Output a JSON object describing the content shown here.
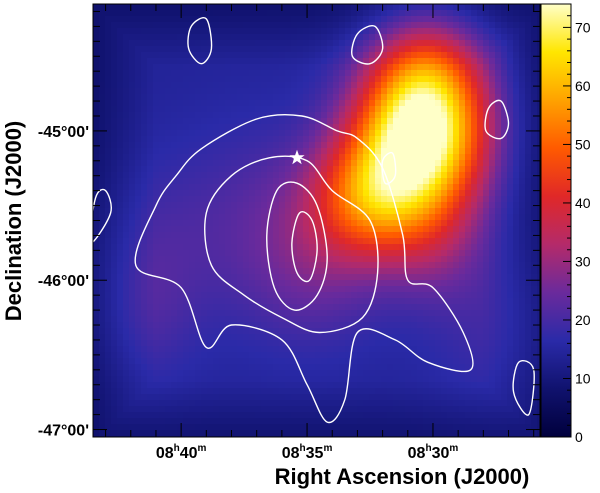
{
  "chart_data": {
    "type": "heatmap",
    "title": "",
    "xlabel": "Right Ascension (J2000)",
    "ylabel": "Declination (J2000)",
    "x_axis": {
      "direction": "decreasing-right",
      "range_min": [
        8,
        43,
        30
      ],
      "range_max": [
        8,
        25,
        45
      ],
      "ticks": [
        {
          "label_h": "08",
          "label_m": "40",
          "ra_min": 520.0
        },
        {
          "label_h": "08",
          "label_m": "35",
          "ra_min": 515.0
        },
        {
          "label_h": "08",
          "label_m": "30",
          "ra_min": 510.0
        }
      ]
    },
    "y_axis": {
      "range": [
        -47.05,
        -44.15
      ],
      "ticks": [
        {
          "label": "-45°00'",
          "dec": -45.0
        },
        {
          "label": "-46°00'",
          "dec": -46.0
        },
        {
          "label": "-47°00'",
          "dec": -47.0
        }
      ]
    },
    "colorbar": {
      "range": [
        0,
        74
      ],
      "ticks": [
        "0",
        "10",
        "20",
        "30",
        "40",
        "50",
        "60",
        "70"
      ],
      "palette": [
        "#00003c",
        "#10126e",
        "#2a2aa8",
        "#6a2a9c",
        "#b42a6a",
        "#e02828",
        "#ff5a00",
        "#ffa200",
        "#ffe600",
        "#ffffc8"
      ]
    },
    "hotspots": [
      {
        "ra_min": 510.5,
        "dec": -45.05,
        "amp": 58,
        "sig_ra": 1.8,
        "sig_dec": 0.34
      },
      {
        "ra_min": 512.5,
        "dec": -45.45,
        "amp": 30,
        "sig_ra": 1.6,
        "sig_dec": 0.28
      },
      {
        "ra_min": 510.2,
        "dec": -44.6,
        "amp": 22,
        "sig_ra": 1.6,
        "sig_dec": 0.3
      },
      {
        "ra_min": 510.0,
        "dec": -45.7,
        "amp": 12,
        "sig_ra": 1.5,
        "sig_dec": 0.3
      },
      {
        "ra_min": 514.5,
        "dec": -45.85,
        "amp": 9,
        "sig_ra": 2.0,
        "sig_dec": 0.4
      },
      {
        "ra_min": 517.0,
        "dec": -45.6,
        "amp": 6,
        "sig_ra": 2.4,
        "sig_dec": 0.5
      },
      {
        "ra_min": 521.5,
        "dec": -46.25,
        "amp": 5,
        "sig_ra": 1.5,
        "sig_dec": 0.35
      },
      {
        "ra_min": 521.0,
        "dec": -45.75,
        "amp": 4,
        "sig_ra": 1.8,
        "sig_dec": 0.4
      },
      {
        "ra_min": 507.5,
        "dec": -46.3,
        "amp": 5,
        "sig_ra": 2.0,
        "sig_dec": 0.4
      }
    ],
    "background_level": 14,
    "source_marker": {
      "symbol": "star",
      "ra_min": 515.4,
      "dec": -45.18
    },
    "contours": [
      {
        "name": "contour-outer",
        "points": [
          [
            519.2,
            -45.12
          ],
          [
            517.0,
            -44.92
          ],
          [
            515.2,
            -44.9
          ],
          [
            513.8,
            -45.0
          ],
          [
            513.0,
            -45.05
          ],
          [
            512.0,
            -45.25
          ],
          [
            511.2,
            -45.7
          ],
          [
            511.0,
            -46.0
          ],
          [
            510.0,
            -46.05
          ],
          [
            508.8,
            -46.35
          ],
          [
            508.5,
            -46.6
          ],
          [
            510.2,
            -46.55
          ],
          [
            511.5,
            -46.4
          ],
          [
            513.0,
            -46.35
          ],
          [
            513.5,
            -46.8
          ],
          [
            514.2,
            -46.95
          ],
          [
            515.0,
            -46.7
          ],
          [
            516.0,
            -46.4
          ],
          [
            518.0,
            -46.3
          ],
          [
            519.0,
            -46.45
          ],
          [
            520.0,
            -46.05
          ],
          [
            521.8,
            -45.9
          ],
          [
            521.0,
            -45.5
          ],
          [
            520.2,
            -45.3
          ],
          [
            519.2,
            -45.12
          ]
        ]
      },
      {
        "name": "contour-middle",
        "points": [
          [
            518.0,
            -45.3
          ],
          [
            516.5,
            -45.18
          ],
          [
            515.0,
            -45.2
          ],
          [
            514.0,
            -45.4
          ],
          [
            512.5,
            -45.6
          ],
          [
            512.2,
            -45.95
          ],
          [
            512.8,
            -46.25
          ],
          [
            514.5,
            -46.35
          ],
          [
            516.0,
            -46.25
          ],
          [
            517.5,
            -46.1
          ],
          [
            518.8,
            -45.9
          ],
          [
            519.0,
            -45.55
          ],
          [
            518.0,
            -45.3
          ]
        ]
      },
      {
        "name": "contour-inner",
        "points": [
          [
            516.2,
            -45.4
          ],
          [
            515.4,
            -45.35
          ],
          [
            514.6,
            -45.5
          ],
          [
            514.2,
            -45.85
          ],
          [
            514.6,
            -46.1
          ],
          [
            515.5,
            -46.2
          ],
          [
            516.3,
            -46.05
          ],
          [
            516.6,
            -45.7
          ],
          [
            516.2,
            -45.4
          ]
        ]
      },
      {
        "name": "contour-core",
        "points": [
          [
            515.3,
            -45.55
          ],
          [
            514.8,
            -45.6
          ],
          [
            514.6,
            -45.8
          ],
          [
            514.9,
            -46.0
          ],
          [
            515.4,
            -45.95
          ],
          [
            515.6,
            -45.75
          ],
          [
            515.3,
            -45.55
          ]
        ]
      },
      {
        "name": "contour-blob-1",
        "points": [
          [
            513.0,
            -44.35
          ],
          [
            512.3,
            -44.3
          ],
          [
            512.0,
            -44.45
          ],
          [
            512.5,
            -44.55
          ],
          [
            513.2,
            -44.5
          ],
          [
            513.0,
            -44.35
          ]
        ]
      },
      {
        "name": "contour-blob-2",
        "points": [
          [
            519.6,
            -44.3
          ],
          [
            519.0,
            -44.25
          ],
          [
            518.8,
            -44.45
          ],
          [
            519.2,
            -44.55
          ],
          [
            519.7,
            -44.45
          ],
          [
            519.6,
            -44.3
          ]
        ]
      },
      {
        "name": "contour-blob-3",
        "points": [
          [
            507.8,
            -44.85
          ],
          [
            507.3,
            -44.8
          ],
          [
            507.0,
            -44.95
          ],
          [
            507.3,
            -45.05
          ],
          [
            507.9,
            -45.0
          ],
          [
            507.8,
            -44.85
          ]
        ]
      },
      {
        "name": "contour-blob-4",
        "points": [
          [
            523.4,
            -45.45
          ],
          [
            523.0,
            -45.4
          ],
          [
            522.8,
            -45.55
          ],
          [
            523.6,
            -45.75
          ],
          [
            523.4,
            -45.45
          ]
        ]
      },
      {
        "name": "contour-blob-5",
        "points": [
          [
            506.6,
            -46.55
          ],
          [
            506.0,
            -46.6
          ],
          [
            506.2,
            -46.9
          ],
          [
            506.8,
            -46.75
          ],
          [
            506.6,
            -46.55
          ]
        ]
      },
      {
        "name": "contour-blob-6",
        "points": [
          [
            512.0,
            -45.2
          ],
          [
            511.6,
            -45.15
          ],
          [
            511.5,
            -45.3
          ],
          [
            511.9,
            -45.35
          ],
          [
            512.0,
            -45.2
          ]
        ]
      }
    ]
  }
}
